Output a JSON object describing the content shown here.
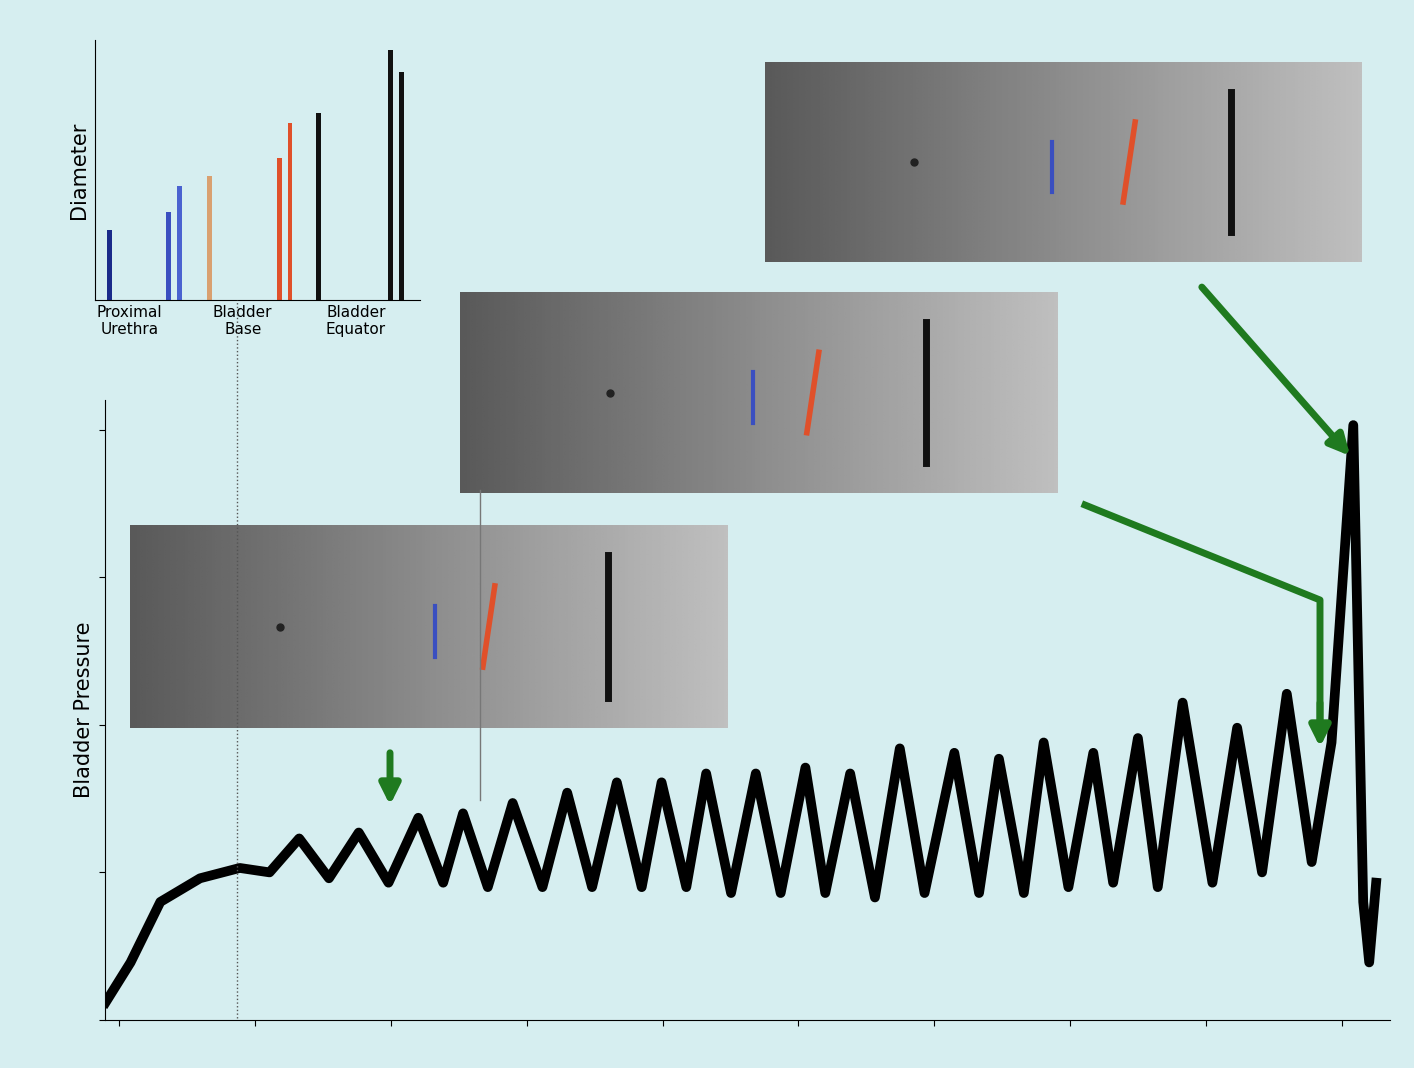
{
  "chart_data": [
    {
      "type": "line",
      "y_label": "Bladder Pressure",
      "color": "#000000",
      "x": [
        -9.5,
        8.8,
        30.7,
        59.9,
        89.1,
        111.0,
        132.8,
        154.7,
        176.6,
        198.5,
        220.4,
        238.7,
        253.3,
        271.5,
        289.8,
        311.7,
        329.9,
        348.2,
        366.4,
        384.7,
        399.3,
        417.5,
        432.1,
        450.4,
        468.6,
        486.9,
        505.1,
        519.7,
        538.0,
        556.2,
        574.5,
        592.7,
        614.6,
        632.8,
        647.4,
        665.7,
        680.3,
        698.5,
        716.8,
        731.4,
        749.6,
        764.2,
        782.5,
        804.4,
        822.6,
        840.9,
        859.1,
        877.4,
        892.0,
        908.0,
        915.3,
        919.7,
        924.8
      ],
      "values": [
        0.12,
        0.39,
        0.8,
        0.96,
        1.03,
        1.0,
        1.23,
        0.96,
        1.27,
        0.93,
        1.37,
        0.93,
        1.4,
        0.9,
        1.47,
        0.9,
        1.54,
        0.9,
        1.61,
        0.9,
        1.61,
        0.9,
        1.67,
        0.86,
        1.67,
        0.86,
        1.71,
        0.86,
        1.67,
        0.83,
        1.84,
        0.86,
        1.81,
        0.86,
        1.77,
        0.86,
        1.88,
        0.9,
        1.81,
        0.93,
        1.91,
        0.9,
        2.15,
        0.93,
        1.98,
        1.0,
        2.21,
        1.07,
        1.88,
        4.03,
        0.8,
        0.39,
        0.93
      ],
      "xlim": [
        -10,
        935
      ],
      "ylim": [
        0,
        4.2
      ],
      "xticks": [
        0,
        100,
        200,
        300,
        400,
        500,
        600,
        700,
        800,
        900
      ],
      "yticks": [
        0,
        1,
        2,
        3,
        4
      ],
      "tick_labels": false
    },
    {
      "type": "bar",
      "y_label": "Diameter",
      "x": [
        15,
        75,
        86,
        116,
        187,
        198,
        227,
        300,
        311
      ],
      "values": [
        70,
        88,
        114,
        124,
        142,
        177,
        187,
        250,
        228
      ],
      "colors": [
        "#1a2a8a",
        "#3a4fc0",
        "#4a62d0",
        "#d9a070",
        "#e0502a",
        "#e0502a",
        "#111111",
        "#111111",
        "#111111"
      ],
      "xlim": [
        0,
        330
      ],
      "ylim": [
        0,
        260
      ],
      "xticks": [
        {
          "value": 35,
          "label": "Proximal\nUrethra"
        },
        {
          "value": 150,
          "label": "Bladder\nBase"
        },
        {
          "value": 265,
          "label": "Bladder\nEquator"
        }
      ],
      "yticks": [],
      "tick_labels": "x"
    }
  ]
}
